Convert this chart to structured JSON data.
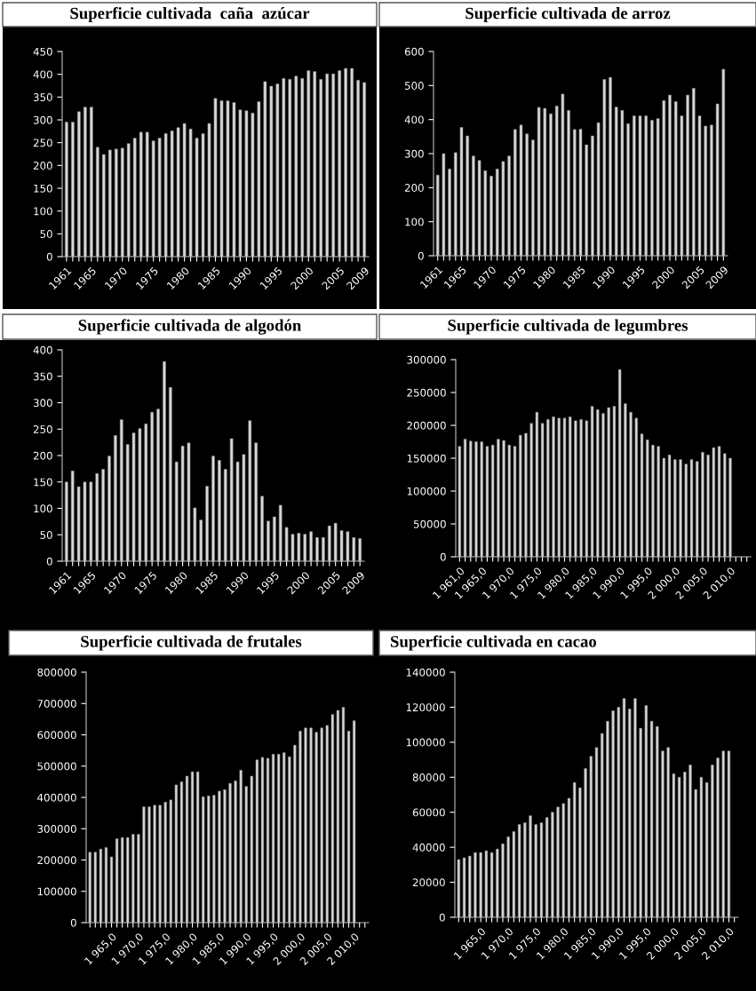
{
  "chart_data": [
    {
      "type": "bar",
      "title": "Superficie cultivada  caña  azúcar",
      "color": "#d9d9d9",
      "categories": [
        "1961",
        null,
        null,
        null,
        "1965",
        null,
        null,
        null,
        null,
        "1970",
        null,
        null,
        null,
        null,
        "1975",
        null,
        null,
        null,
        null,
        "1980",
        null,
        null,
        null,
        null,
        "1985",
        null,
        null,
        null,
        null,
        "1990",
        null,
        null,
        null,
        null,
        "1995",
        null,
        null,
        null,
        null,
        "2000",
        null,
        null,
        null,
        null,
        "2005",
        null,
        null,
        null,
        "2009"
      ],
      "values": [
        295,
        295,
        318,
        328,
        328,
        240,
        224,
        234,
        236,
        238,
        248,
        260,
        273,
        273,
        254,
        260,
        270,
        276,
        283,
        292,
        280,
        260,
        270,
        292,
        347,
        342,
        342,
        338,
        322,
        320,
        315,
        340,
        384,
        374,
        379,
        391,
        389,
        396,
        391,
        408,
        406,
        389,
        401,
        401,
        408,
        413,
        413,
        387,
        382
      ],
      "ylim": [
        0,
        450
      ],
      "yticks": [
        0,
        50,
        100,
        150,
        200,
        250,
        300,
        350,
        400,
        450
      ]
    },
    {
      "type": "bar",
      "title": "Superficie cultivada de arroz",
      "color": "#d9d9d9",
      "categories": [
        "1961",
        null,
        null,
        null,
        "1965",
        null,
        null,
        null,
        null,
        "1970",
        null,
        null,
        null,
        null,
        "1975",
        null,
        null,
        null,
        null,
        "1980",
        null,
        null,
        null,
        null,
        "1985",
        null,
        null,
        null,
        null,
        "1990",
        null,
        null,
        null,
        null,
        "1995",
        null,
        null,
        null,
        null,
        "2000",
        null,
        null,
        null,
        null,
        "2005",
        null,
        null,
        null,
        "2009"
      ],
      "values": [
        237,
        300,
        255,
        303,
        377,
        352,
        293,
        280,
        250,
        234,
        255,
        277,
        293,
        371,
        384,
        358,
        340,
        436,
        433,
        417,
        440,
        475,
        427,
        371,
        372,
        326,
        352,
        391,
        518,
        524,
        437,
        427,
        388,
        411,
        411,
        411,
        398,
        403,
        456,
        472,
        453,
        411,
        472,
        492,
        411,
        381,
        384,
        446,
        548
      ],
      "ylim": [
        0,
        600
      ],
      "yticks": [
        0,
        100,
        200,
        300,
        400,
        500,
        600
      ]
    },
    {
      "type": "bar",
      "title": "Superficie cultivada de algodón",
      "color": "#d9d9d9",
      "categories": [
        "1961",
        null,
        null,
        null,
        "1965",
        null,
        null,
        null,
        null,
        "1970",
        null,
        null,
        null,
        null,
        "1975",
        null,
        null,
        null,
        null,
        "1980",
        null,
        null,
        null,
        null,
        "1985",
        null,
        null,
        null,
        null,
        "1990",
        null,
        null,
        null,
        null,
        "1995",
        null,
        null,
        null,
        null,
        "2000",
        null,
        null,
        null,
        null,
        "2005",
        null,
        null,
        null,
        "2009"
      ],
      "values": [
        150,
        171,
        141,
        150,
        150,
        166,
        174,
        199,
        238,
        268,
        221,
        243,
        251,
        260,
        282,
        288,
        378,
        329,
        188,
        218,
        224,
        101,
        78,
        142,
        199,
        191,
        174,
        232,
        188,
        202,
        266,
        224,
        123,
        76,
        84,
        106,
        64,
        51,
        53,
        51,
        56,
        45,
        45,
        67,
        72,
        58,
        56,
        45,
        43
      ],
      "ylim": [
        0,
        400
      ],
      "yticks": [
        0,
        50,
        100,
        150,
        200,
        250,
        300,
        350,
        400
      ]
    },
    {
      "type": "bar",
      "title": "Superficie cultivada de legumbres",
      "color": "#d9d9d9",
      "categories": [
        "1 961,0",
        null,
        null,
        null,
        "1 965,0",
        null,
        null,
        null,
        null,
        "1 970,0",
        null,
        null,
        null,
        null,
        "1 975,0",
        null,
        null,
        null,
        null,
        "1 980,0",
        null,
        null,
        null,
        null,
        "1 985,0",
        null,
        null,
        null,
        null,
        "1 990,0",
        null,
        null,
        null,
        null,
        "1 995,0",
        null,
        null,
        null,
        null,
        "2 000,0",
        null,
        null,
        null,
        null,
        "2 005,0",
        null,
        null,
        null,
        null,
        "2 010,0",
        null,
        null,
        null
      ],
      "values": [
        168000,
        179000,
        176000,
        175000,
        175000,
        168000,
        170000,
        179000,
        177000,
        170000,
        168000,
        185000,
        188000,
        203000,
        220000,
        203000,
        209000,
        213000,
        211000,
        211000,
        213000,
        207000,
        209000,
        207000,
        229000,
        224000,
        218000,
        227000,
        229000,
        285000,
        233000,
        220000,
        211000,
        187000,
        178000,
        170000,
        168000,
        150000,
        155000,
        148000,
        148000,
        141000,
        148000,
        145000,
        159000,
        155000,
        166000,
        168000,
        157000,
        150000,
        null,
        null,
        null
      ],
      "ylim": [
        0,
        300000
      ],
      "yticks": [
        0,
        50000,
        100000,
        150000,
        200000,
        250000,
        300000
      ]
    },
    {
      "type": "bar",
      "title": "Superficie cultivada de frutales",
      "color": "#d9d9d9",
      "categories": [
        null,
        null,
        null,
        null,
        "1 965,0",
        null,
        null,
        null,
        null,
        "1 970,0",
        null,
        null,
        null,
        null,
        "1 975,0",
        null,
        null,
        null,
        null,
        "1 980,0",
        null,
        null,
        null,
        null,
        "1 985,0",
        null,
        null,
        null,
        null,
        "1 990,0",
        null,
        null,
        null,
        null,
        "1 995,0",
        null,
        null,
        null,
        null,
        "2 000,0",
        null,
        null,
        null,
        null,
        "2 005,0",
        null,
        null,
        null,
        null,
        "2 010,0",
        null,
        null
      ],
      "values": [
        225000,
        225000,
        235000,
        240000,
        210000,
        268000,
        272000,
        272000,
        282000,
        282000,
        370000,
        370000,
        375000,
        375000,
        385000,
        392000,
        440000,
        450000,
        468000,
        482000,
        482000,
        402000,
        405000,
        407000,
        420000,
        425000,
        445000,
        453000,
        487000,
        435000,
        468000,
        520000,
        528000,
        525000,
        538000,
        538000,
        543000,
        530000,
        567000,
        612000,
        622000,
        622000,
        608000,
        622000,
        630000,
        665000,
        678000,
        688000,
        612000,
        645000,
        null,
        null
      ],
      "ylim": [
        0,
        800000
      ],
      "yticks": [
        0,
        100000,
        200000,
        300000,
        400000,
        500000,
        600000,
        700000,
        800000
      ]
    },
    {
      "type": "bar",
      "title": "Superficie cultivada en cacao",
      "color": "#d9d9d9",
      "categories": [
        null,
        null,
        null,
        null,
        "1 965,0",
        null,
        null,
        null,
        null,
        "1 970,0",
        null,
        null,
        null,
        null,
        "1 975,0",
        null,
        null,
        null,
        null,
        "1 980,0",
        null,
        null,
        null,
        null,
        "1 985,0",
        null,
        null,
        null,
        null,
        "1 990,0",
        null,
        null,
        null,
        null,
        "1 995,0",
        null,
        null,
        null,
        null,
        "2 000,0",
        null,
        null,
        null,
        null,
        "2 005,0",
        null,
        null,
        null,
        null,
        "2 010,0",
        null
      ],
      "values": [
        33000,
        34000,
        35000,
        37000,
        37000,
        38000,
        37000,
        39000,
        42000,
        46000,
        49000,
        53000,
        54000,
        58000,
        53000,
        54000,
        57000,
        60000,
        63000,
        65000,
        68000,
        77000,
        74000,
        85000,
        92000,
        97000,
        105000,
        112000,
        118000,
        120000,
        125000,
        119000,
        125000,
        108000,
        121000,
        112000,
        109000,
        95000,
        97000,
        82000,
        80000,
        83000,
        87000,
        73000,
        80000,
        77000,
        87000,
        91000,
        95000,
        95000,
        null
      ],
      "ylim": [
        0,
        140000
      ],
      "yticks": [
        0,
        20000,
        40000,
        60000,
        80000,
        100000,
        120000,
        140000
      ]
    }
  ]
}
